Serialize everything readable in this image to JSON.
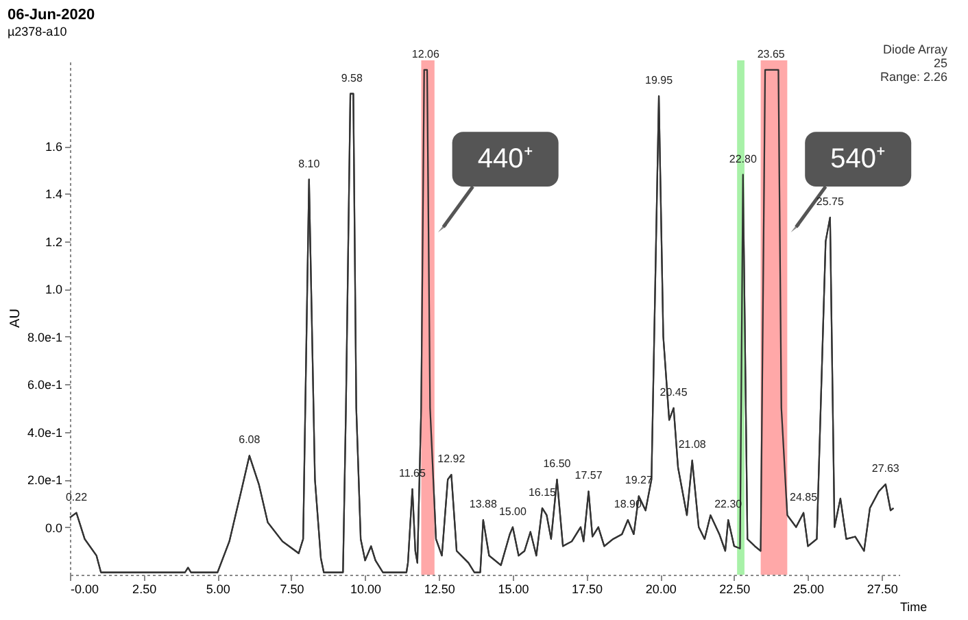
{
  "chart_data": {
    "type": "line",
    "title": "06-Jun-2020",
    "subtitle": "µ2378-a10",
    "xlabel": "Time",
    "ylabel": "AU",
    "x": [
      0,
      0.22,
      0.5,
      0.9,
      1.05,
      3.9,
      4.0,
      4.1,
      5.0,
      5.4,
      5.8,
      6.08,
      6.4,
      6.7,
      7.2,
      7.75,
      7.9,
      8.1,
      8.3,
      8.5,
      8.6,
      9.25,
      9.35,
      9.5,
      9.6,
      9.7,
      9.85,
      10.0,
      10.2,
      10.35,
      10.6,
      11.4,
      11.45,
      11.6,
      11.7,
      11.77,
      11.9,
      12.0,
      12.1,
      12.2,
      12.4,
      12.6,
      12.8,
      12.92,
      13.1,
      13.5,
      13.7,
      13.9,
      14.0,
      14.2,
      14.6,
      14.9,
      15.0,
      15.2,
      15.4,
      15.6,
      15.8,
      16.0,
      16.15,
      16.3,
      16.5,
      16.7,
      17.0,
      17.3,
      17.4,
      17.57,
      17.7,
      17.9,
      18.1,
      18.4,
      18.7,
      18.9,
      19.1,
      19.27,
      19.5,
      19.7,
      19.95,
      20.1,
      20.3,
      20.45,
      20.6,
      20.9,
      21.08,
      21.3,
      21.5,
      21.7,
      22.0,
      22.2,
      22.3,
      22.5,
      22.7,
      22.8,
      22.95,
      23.2,
      23.4,
      23.55,
      24.0,
      24.1,
      24.3,
      24.6,
      24.85,
      25.0,
      25.3,
      25.6,
      25.75,
      25.9,
      26.1,
      26.3,
      26.6,
      26.9,
      27.1,
      27.4,
      27.63,
      27.8,
      27.9
    ],
    "series": [
      {
        "color": "#333333",
        "values": [
          0.04,
          0.06,
          -0.05,
          -0.12,
          -0.19,
          -0.19,
          -0.17,
          -0.19,
          -0.19,
          -0.06,
          0.15,
          0.3,
          0.18,
          0.02,
          -0.06,
          -0.11,
          -0.05,
          1.46,
          0.2,
          -0.13,
          -0.19,
          -0.19,
          0.5,
          1.82,
          1.82,
          0.5,
          -0.05,
          -0.14,
          -0.08,
          -0.14,
          -0.19,
          -0.19,
          -0.15,
          0.16,
          -0.1,
          -0.15,
          0.5,
          1.92,
          1.92,
          0.5,
          -0.05,
          -0.12,
          0.2,
          0.22,
          -0.1,
          -0.15,
          -0.19,
          -0.19,
          0.03,
          -0.12,
          -0.16,
          -0.03,
          0.0,
          -0.12,
          -0.1,
          -0.02,
          -0.12,
          0.08,
          0.05,
          -0.05,
          0.2,
          -0.08,
          -0.06,
          0.0,
          -0.06,
          0.15,
          -0.04,
          0.0,
          -0.08,
          -0.05,
          -0.03,
          0.03,
          -0.03,
          0.13,
          0.07,
          0.2,
          1.81,
          0.8,
          0.45,
          0.5,
          0.25,
          0.05,
          0.28,
          0.0,
          -0.05,
          0.05,
          -0.03,
          -0.1,
          0.03,
          -0.08,
          -0.09,
          1.48,
          -0.05,
          -0.08,
          -0.1,
          1.92,
          1.92,
          0.5,
          0.05,
          0.0,
          0.06,
          -0.08,
          -0.05,
          1.2,
          1.3,
          0.0,
          0.12,
          -0.05,
          -0.04,
          -0.1,
          0.08,
          0.15,
          0.18,
          0.07,
          0.08
        ]
      }
    ],
    "xlim": [
      0,
      28.1
    ],
    "ylim": [
      -0.2,
      1.96
    ],
    "xticks": [
      {
        "value": 0,
        "label": "-0.00"
      },
      {
        "value": 2.5,
        "label": "2.50"
      },
      {
        "value": 5,
        "label": "5.00"
      },
      {
        "value": 7.5,
        "label": "7.50"
      },
      {
        "value": 10,
        "label": "10.00"
      },
      {
        "value": 12.5,
        "label": "12.50"
      },
      {
        "value": 15,
        "label": "15.00"
      },
      {
        "value": 17.5,
        "label": "17.50"
      },
      {
        "value": 20,
        "label": "20.00"
      },
      {
        "value": 22.5,
        "label": "22.50"
      },
      {
        "value": 25,
        "label": "25.00"
      },
      {
        "value": 27.5,
        "label": "27.50"
      }
    ],
    "yticks": [
      {
        "value": 0,
        "label": "0.0"
      },
      {
        "value": 0.2,
        "label": "2.0e-1"
      },
      {
        "value": 0.4,
        "label": "4.0e-1"
      },
      {
        "value": 0.6,
        "label": "6.0e-1"
      },
      {
        "value": 0.8,
        "label": "8.0e-1"
      },
      {
        "value": 1.0,
        "label": "1.0"
      },
      1.2,
      1.4,
      1.6
    ],
    "bands": [
      {
        "axis": "x",
        "from": 11.9,
        "to": 12.35,
        "label": "440⁺",
        "color": "#ff9999"
      },
      {
        "axis": "x",
        "from": 22.6,
        "to": 22.85,
        "color": "#99ee99"
      },
      {
        "axis": "x",
        "from": 23.4,
        "to": 24.3,
        "label": "540⁺",
        "color": "#ff9999"
      }
    ],
    "annotations": [
      "Diode Array",
      "25",
      "Range: 2.26",
      {
        "text": "0.22",
        "x": 0.22,
        "y": 0.06
      },
      {
        "text": "6.08",
        "x": 6.08,
        "y": 0.3
      },
      {
        "text": "8.10",
        "x": 8.1,
        "y": 1.46
      },
      {
        "text": "9.58",
        "x": 9.55,
        "y": 1.82
      },
      {
        "text": "11.65",
        "x": 11.6,
        "y": 0.16
      },
      {
        "text": "12.06",
        "x": 12.05,
        "y": 1.92
      },
      {
        "text": "12.92",
        "x": 12.92,
        "y": 0.22
      },
      {
        "text": "13.88",
        "x": 14.0,
        "y": 0.03
      },
      {
        "text": "15.00",
        "x": 15.0,
        "y": 0.0
      },
      {
        "text": "16.15",
        "x": 16.0,
        "y": 0.08
      },
      {
        "text": "16.50",
        "x": 16.5,
        "y": 0.2
      },
      {
        "text": "17.57",
        "x": 17.57,
        "y": 0.15
      },
      {
        "text": "18.90",
        "x": 18.9,
        "y": 0.03
      },
      {
        "text": "19.27",
        "x": 19.27,
        "y": 0.13
      },
      {
        "text": "19.95",
        "x": 19.95,
        "y": 1.81
      },
      {
        "text": "20.45",
        "x": 20.45,
        "y": 0.5
      },
      {
        "text": "21.08",
        "x": 21.08,
        "y": 0.28
      },
      {
        "text": "22.30",
        "x": 22.3,
        "y": 0.03
      },
      {
        "text": "22.80",
        "x": 22.8,
        "y": 1.48
      },
      {
        "text": "23.65",
        "x": 23.75,
        "y": 1.92
      },
      {
        "text": "24.85",
        "x": 24.85,
        "y": 0.06
      },
      {
        "text": "25.75",
        "x": 25.75,
        "y": 1.3
      },
      {
        "text": "27.63",
        "x": 27.63,
        "y": 0.18
      }
    ],
    "grid": false
  }
}
